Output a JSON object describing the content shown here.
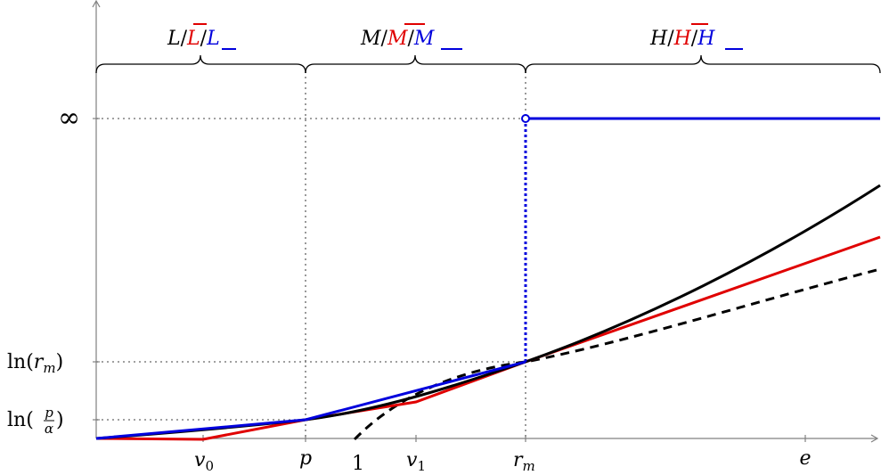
{
  "colors": {
    "black": "#000000",
    "red": "#e00000",
    "blue": "#0000dd",
    "guide": "#808080",
    "axis": "#808080"
  },
  "regions": [
    {
      "id": "low",
      "base": "L",
      "overline": "L",
      "underline": "L"
    },
    {
      "id": "mid",
      "base": "M",
      "overline": "M",
      "underline": "M"
    },
    {
      "id": "high",
      "base": "H",
      "overline": "H",
      "underline": "H"
    }
  ],
  "y_labels": {
    "infinity": "∞",
    "ln_rm": {
      "func": "ln(",
      "var": "r",
      "sub": "m",
      "close": ")"
    },
    "ln_p_alpha": {
      "func": "ln(",
      "num": "p",
      "den": "α",
      "close": ")"
    }
  },
  "x_labels": {
    "v0": {
      "var": "v",
      "sub": "0"
    },
    "p": {
      "var": "p"
    },
    "one": {
      "text": "1"
    },
    "v1": {
      "var": "v",
      "sub": "1"
    },
    "rm": {
      "var": "r",
      "sub": "m"
    },
    "e": {
      "var": "e"
    }
  },
  "curves": {
    "black_solid": "convex function",
    "red_solid": "piecewise lower approximation",
    "blue_solid": "piecewise upper approximation with jump to infinity",
    "black_dashed": "tangent line"
  }
}
